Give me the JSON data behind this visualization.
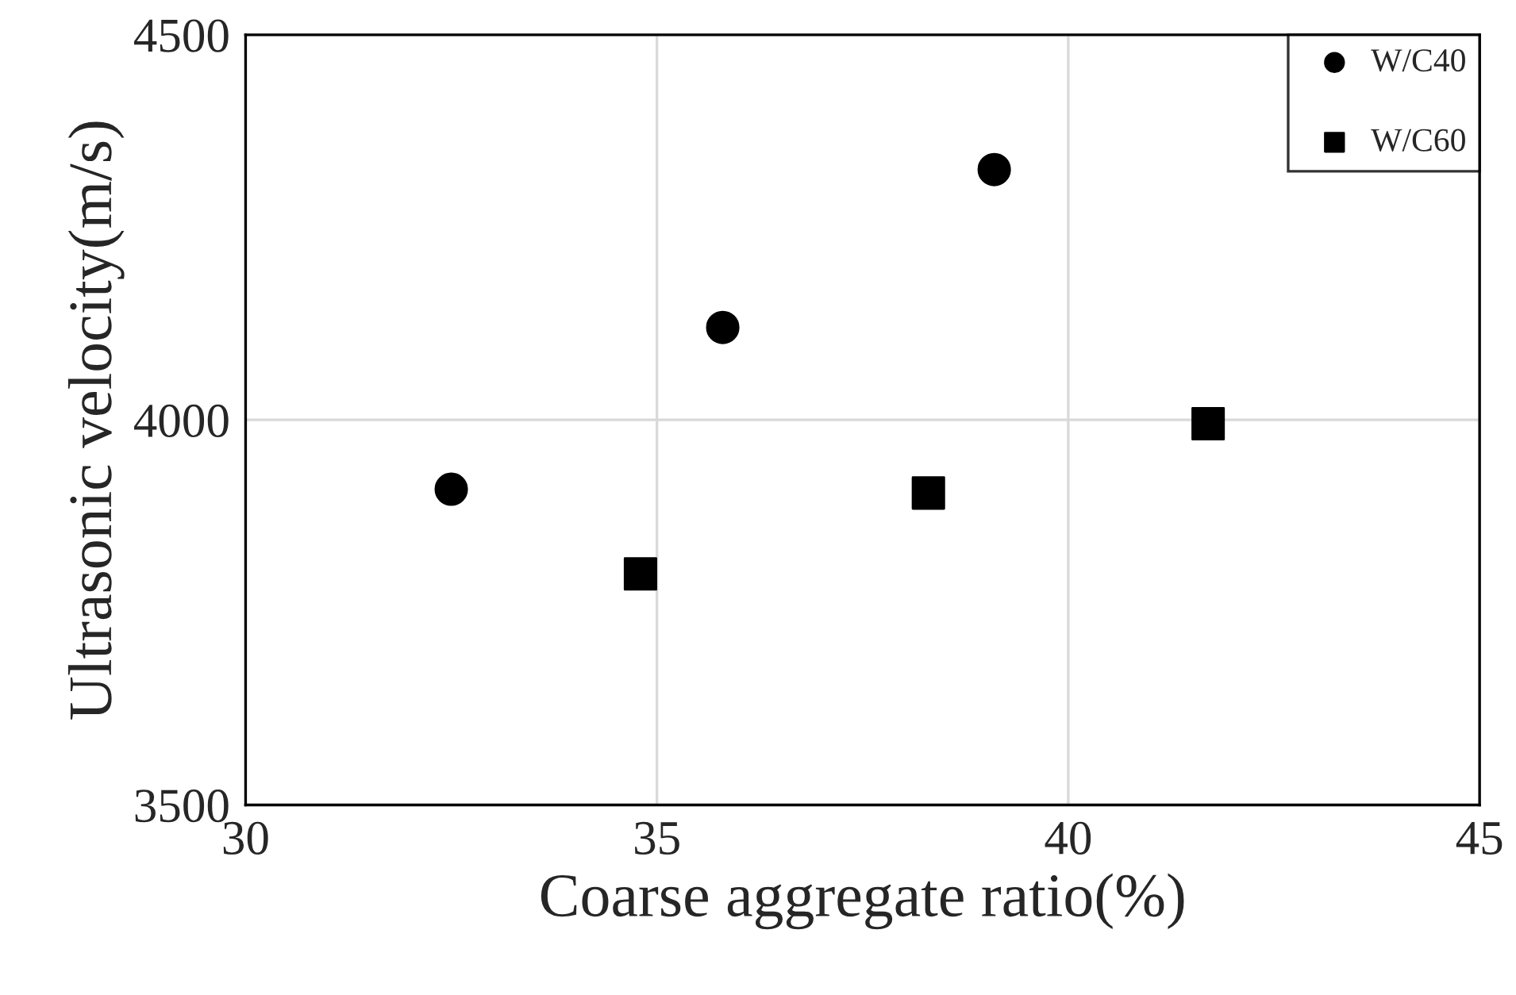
{
  "chart_data": {
    "type": "scatter",
    "xlabel": "Coarse aggregate ratio(%)",
    "ylabel": "Ultrasonic velocity(m/s)",
    "series": [
      {
        "name": "W/C40",
        "color": "#000000",
        "marker": "circle",
        "x": [
          32.5,
          35.8,
          39.1
        ],
        "values": [
          3910,
          4120,
          4325
        ]
      },
      {
        "name": "W/C60",
        "color": "#000000",
        "marker": "square",
        "x": [
          34.8,
          38.3,
          41.7
        ],
        "values": [
          3800,
          3905,
          3995
        ]
      }
    ],
    "xlim": [
      30,
      45
    ],
    "xticks": [
      30,
      35,
      40,
      45
    ],
    "ylim": [
      3500,
      4500
    ],
    "yticks": [
      3500,
      4000,
      4500
    ],
    "grid": true,
    "legend": "top right"
  }
}
